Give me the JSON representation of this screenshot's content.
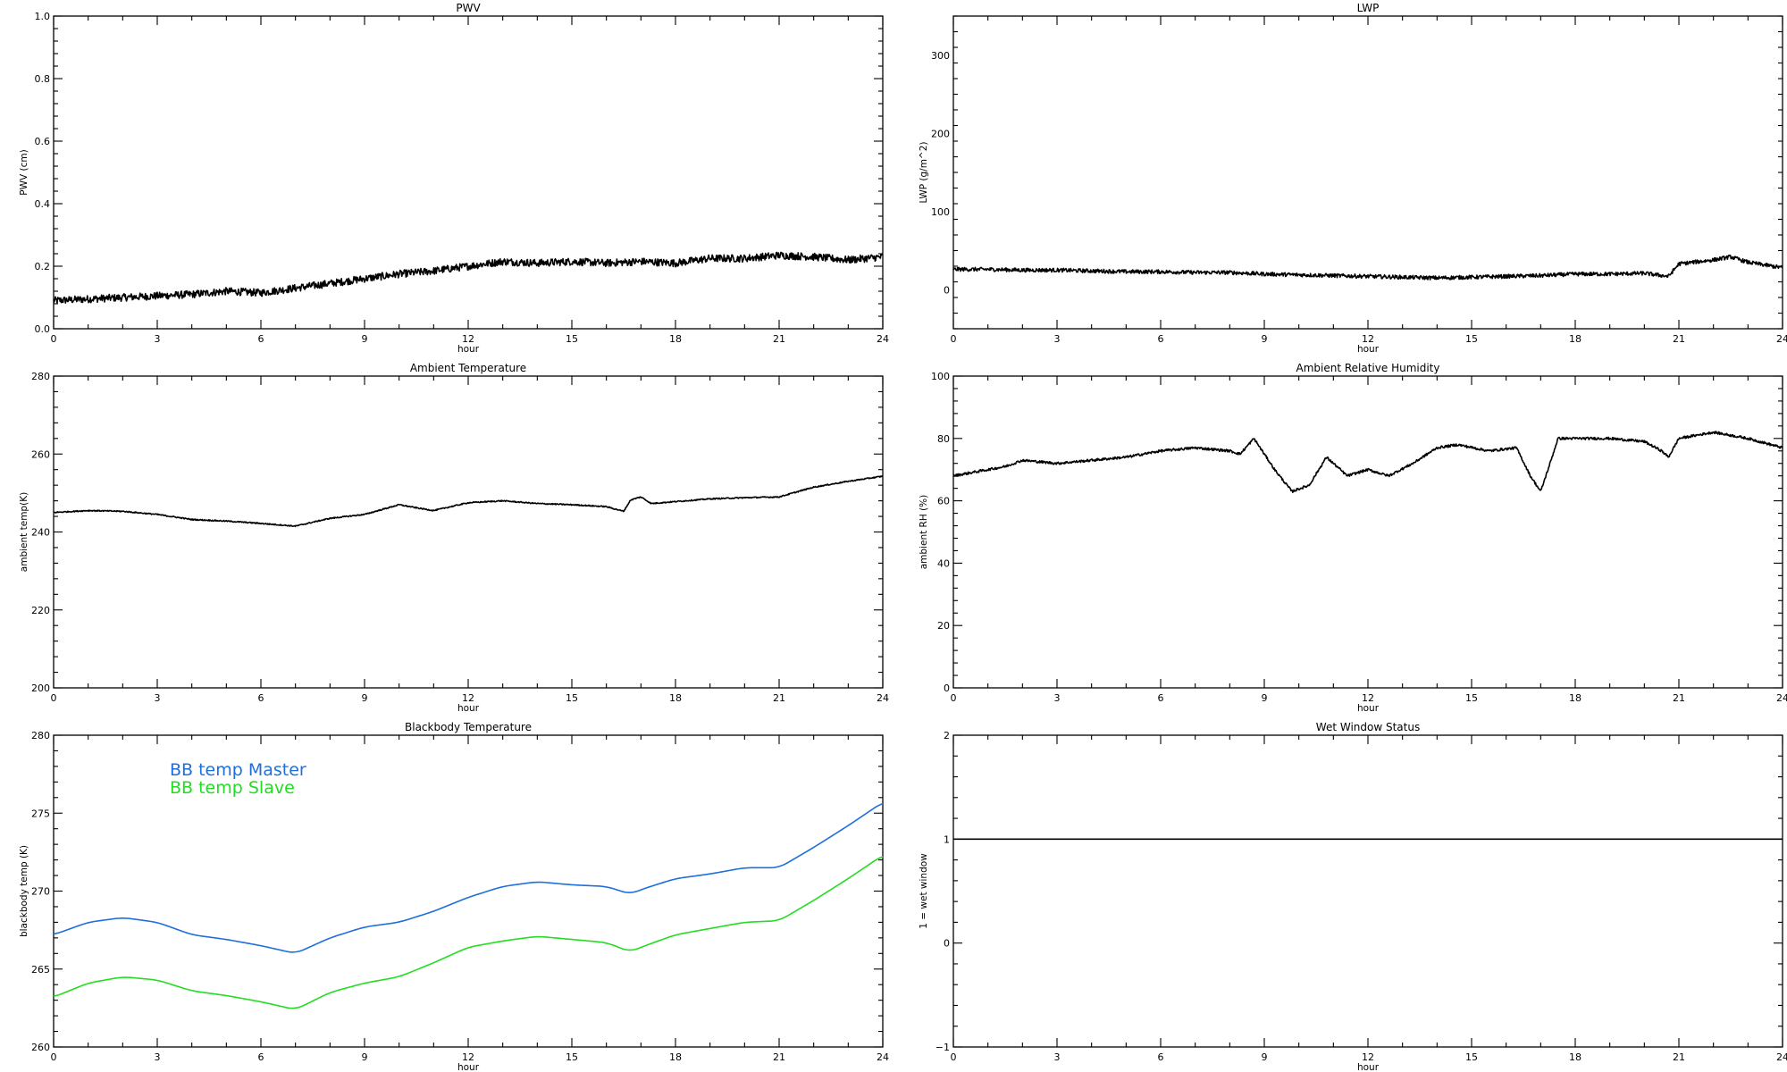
{
  "chart_data": [
    {
      "id": "pwv",
      "type": "line",
      "title": "PWV",
      "xlabel": "hour",
      "ylabel": "PWV (cm)",
      "xlim": [
        0,
        24
      ],
      "ylim": [
        0.0,
        1.0
      ],
      "xticks": [
        "0",
        "3",
        "6",
        "9",
        "12",
        "15",
        "18",
        "21",
        "24"
      ],
      "yticks": [
        "0.0",
        "0.2",
        "0.4",
        "0.6",
        "0.8",
        "1.0"
      ],
      "series": [
        {
          "color": "#000000",
          "noise": 0.012,
          "x": [
            0,
            1,
            2,
            3,
            4,
            5,
            6,
            7,
            8,
            9,
            10,
            11,
            12,
            13,
            14,
            15,
            16,
            17,
            18,
            19,
            20,
            21,
            22,
            23,
            24
          ],
          "values": [
            0.09,
            0.095,
            0.1,
            0.105,
            0.11,
            0.12,
            0.115,
            0.13,
            0.145,
            0.16,
            0.175,
            0.185,
            0.2,
            0.215,
            0.21,
            0.215,
            0.21,
            0.215,
            0.21,
            0.225,
            0.225,
            0.235,
            0.23,
            0.22,
            0.23
          ]
        }
      ]
    },
    {
      "id": "lwp",
      "type": "line",
      "title": "LWP",
      "xlabel": "hour",
      "ylabel": "LWP (g/m^2)",
      "xlim": [
        0,
        24
      ],
      "ylim": [
        -50,
        350
      ],
      "xticks": [
        "0",
        "3",
        "6",
        "9",
        "12",
        "15",
        "18",
        "21",
        "24"
      ],
      "yticks": [
        "0",
        "100",
        "200",
        "300"
      ],
      "series": [
        {
          "color": "#000000",
          "noise": 2.5,
          "x": [
            0,
            1,
            2,
            3,
            4,
            5,
            6,
            7,
            8,
            9,
            10,
            11,
            12,
            13,
            14,
            15,
            16,
            17,
            18,
            19,
            20,
            20.7,
            21,
            22,
            22.5,
            23,
            24
          ],
          "values": [
            26,
            26,
            25,
            25,
            24,
            23,
            23,
            22,
            22,
            20,
            19,
            18,
            17,
            16,
            15,
            16,
            17,
            18,
            20,
            20,
            21,
            17,
            33,
            38,
            42,
            35,
            28
          ]
        }
      ]
    },
    {
      "id": "ambient_temp",
      "type": "line",
      "title": "Ambient Temperature",
      "xlabel": "hour",
      "ylabel": "ambient temp(K)",
      "xlim": [
        0,
        24
      ],
      "ylim": [
        200,
        280
      ],
      "xticks": [
        "0",
        "3",
        "6",
        "9",
        "12",
        "15",
        "18",
        "21",
        "24"
      ],
      "yticks": [
        "200",
        "220",
        "240",
        "260",
        "280"
      ],
      "series": [
        {
          "color": "#000000",
          "noise": 0.15,
          "x": [
            0,
            1,
            2,
            3,
            4,
            5,
            6,
            7,
            8,
            9,
            10,
            10.5,
            11,
            12,
            13,
            14,
            15,
            16,
            16.5,
            16.7,
            17,
            17.3,
            18,
            19,
            20,
            21,
            22,
            23,
            24
          ],
          "values": [
            245,
            245.5,
            245.3,
            244.5,
            243.2,
            242.8,
            242.2,
            241.5,
            243.5,
            244.5,
            247,
            246.2,
            245.5,
            247.5,
            248,
            247.3,
            247,
            246.5,
            245.3,
            248.2,
            249,
            247.3,
            247.8,
            248.5,
            248.8,
            249,
            251.5,
            253,
            254.3
          ]
        }
      ]
    },
    {
      "id": "ambient_rh",
      "type": "line",
      "title": "Ambient Relative Humidity",
      "xlabel": "hour",
      "ylabel": "ambient RH (%)",
      "xlim": [
        0,
        24
      ],
      "ylim": [
        0,
        100
      ],
      "xticks": [
        "0",
        "3",
        "6",
        "9",
        "12",
        "15",
        "18",
        "21",
        "24"
      ],
      "yticks": [
        "0",
        "20",
        "40",
        "60",
        "80",
        "100"
      ],
      "series": [
        {
          "color": "#000000",
          "noise": 0.4,
          "x": [
            0,
            0.5,
            1,
            1.5,
            2,
            3,
            4,
            5,
            6,
            7,
            8,
            8.3,
            8.7,
            9.3,
            9.8,
            10.3,
            10.8,
            11.4,
            12,
            12.6,
            13.3,
            14,
            14.6,
            15.5,
            16.3,
            16.7,
            17,
            17.3,
            17.5,
            18,
            19,
            20,
            20.5,
            20.7,
            21,
            21.5,
            22,
            23,
            24
          ],
          "values": [
            68,
            69,
            70,
            71,
            73,
            72,
            73,
            74,
            76,
            77,
            76,
            75,
            80,
            70,
            63,
            65,
            74,
            68,
            70,
            68,
            72,
            77,
            78,
            76,
            77,
            68,
            63,
            73,
            80,
            80,
            80,
            79,
            76,
            74,
            80,
            81,
            82,
            80,
            77
          ]
        }
      ]
    },
    {
      "id": "bb_temp",
      "type": "line",
      "title": "Blackbody Temperature",
      "xlabel": "hour",
      "ylabel": "blackbody temp (K)",
      "xlim": [
        0,
        24
      ],
      "ylim": [
        260,
        280
      ],
      "xticks": [
        "0",
        "3",
        "6",
        "9",
        "12",
        "15",
        "18",
        "21",
        "24"
      ],
      "yticks": [
        "260",
        "265",
        "270",
        "275",
        "280"
      ],
      "legend_position": "top-left",
      "series": [
        {
          "name": "BB temp Master",
          "color": "#1e6fdc",
          "noise": 0,
          "x": [
            0,
            1,
            2,
            3,
            4,
            5,
            6,
            7,
            8,
            9,
            10,
            11,
            12,
            13,
            14,
            15,
            16,
            16.7,
            17,
            18,
            19,
            20,
            21,
            22,
            23,
            24
          ],
          "values": [
            267.2,
            268,
            268.3,
            268,
            267.2,
            266.9,
            266.5,
            266,
            267,
            267.7,
            268,
            268.7,
            269.6,
            270.3,
            270.6,
            270.4,
            270.3,
            269.8,
            270.1,
            270.8,
            271.1,
            271.5,
            271.5,
            272.8,
            274.2,
            275.7
          ]
        },
        {
          "name": "BB temp Slave",
          "color": "#22dd22",
          "noise": 0,
          "x": [
            0,
            1,
            2,
            3,
            4,
            5,
            6,
            7,
            8,
            9,
            10,
            11,
            12,
            13,
            14,
            15,
            16,
            16.7,
            17,
            18,
            19,
            20,
            21,
            22,
            23,
            24
          ],
          "values": [
            263.2,
            264.1,
            264.5,
            264.3,
            263.6,
            263.3,
            262.9,
            262.4,
            263.5,
            264.1,
            264.5,
            265.4,
            266.4,
            266.8,
            267.1,
            266.9,
            266.7,
            266.1,
            266.4,
            267.2,
            267.6,
            268,
            268.1,
            269.4,
            270.8,
            272.3
          ]
        }
      ]
    },
    {
      "id": "wet_window",
      "type": "line",
      "title": "Wet Window Status",
      "xlabel": "hour",
      "ylabel": "1 = wet window",
      "xlim": [
        0,
        24
      ],
      "ylim": [
        -1,
        2
      ],
      "xticks": [
        "0",
        "3",
        "6",
        "9",
        "12",
        "15",
        "18",
        "21",
        "24"
      ],
      "yticks": [
        "−1",
        "0",
        "1",
        "2"
      ],
      "series": [
        {
          "color": "#000000",
          "noise": 0,
          "x": [
            0,
            24
          ],
          "values": [
            1,
            1
          ]
        }
      ]
    }
  ]
}
